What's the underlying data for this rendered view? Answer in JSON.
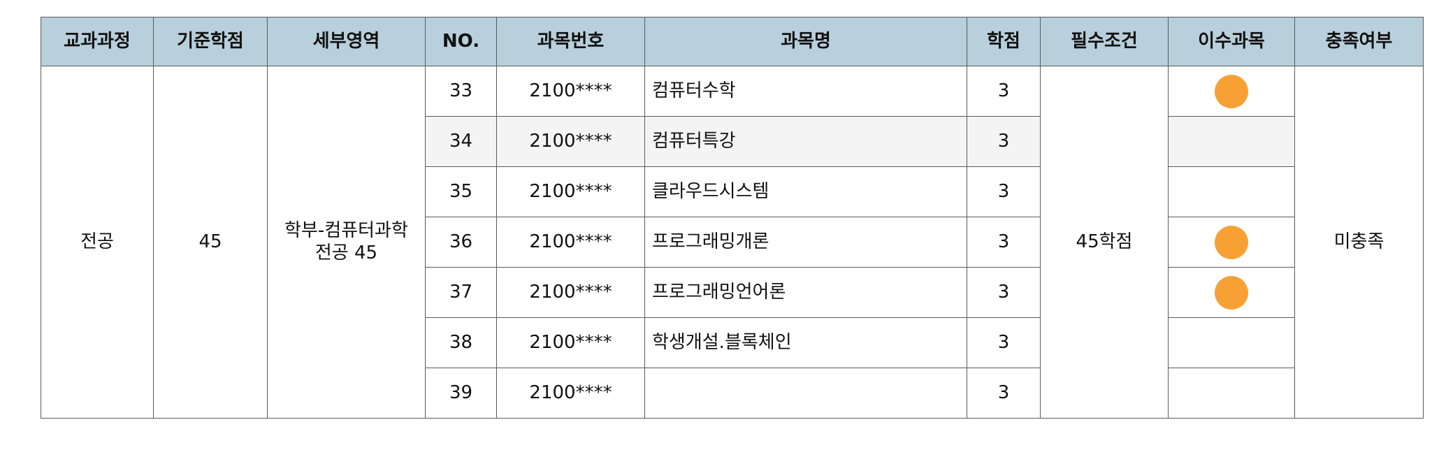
{
  "colors": {
    "header_bg": "#b8cfdc",
    "completed_dot": "#f7a135",
    "stripe_row": "#f4f4f4",
    "border": "#5a5a5a"
  },
  "headers": {
    "curriculum": "교과과정",
    "base_credits": "기준학점",
    "sub_area": "세부영역",
    "no": "NO.",
    "course_code": "과목번호",
    "course_name": "과목명",
    "credits": "학점",
    "requirement": "필수조건",
    "completed": "이수과목",
    "satisfied": "충족여부"
  },
  "group": {
    "curriculum": "전공",
    "base_credits": "45",
    "sub_area": "학부-컴퓨터과학\n전공 45",
    "requirement": "45학점",
    "satisfied": "미충족"
  },
  "rows": [
    {
      "no": "33",
      "code": "2100****",
      "name": "컴퓨터수학",
      "credits": "3",
      "completed": true
    },
    {
      "no": "34",
      "code": "2100****",
      "name": "컴퓨터특강",
      "credits": "3",
      "completed": false
    },
    {
      "no": "35",
      "code": "2100****",
      "name": "클라우드시스템",
      "credits": "3",
      "completed": false
    },
    {
      "no": "36",
      "code": "2100****",
      "name": "프로그래밍개론",
      "credits": "3",
      "completed": true
    },
    {
      "no": "37",
      "code": "2100****",
      "name": "프로그래밍언어론",
      "credits": "3",
      "completed": true
    },
    {
      "no": "38",
      "code": "2100****",
      "name": "학생개설.블록체인",
      "credits": "3",
      "completed": false
    },
    {
      "no": "39",
      "code": "2100****",
      "name": "",
      "credits": "3",
      "completed": false
    }
  ]
}
